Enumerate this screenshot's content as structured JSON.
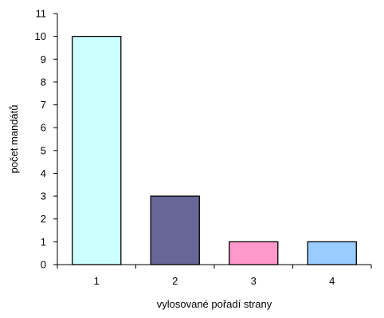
{
  "chart_data": {
    "type": "bar",
    "categories": [
      "1",
      "2",
      "3",
      "4"
    ],
    "values": [
      10,
      3,
      1,
      1
    ],
    "colors": [
      "#ccffff",
      "#666699",
      "#ff99cc",
      "#99ccff"
    ],
    "title": "",
    "xlabel": "vylosované pořadí strany",
    "ylabel": "počet mandátů",
    "ylim": [
      0,
      11
    ],
    "yticks": [
      0,
      1,
      2,
      3,
      4,
      5,
      6,
      7,
      8,
      9,
      10,
      11
    ],
    "grid": false,
    "legend": "none"
  }
}
